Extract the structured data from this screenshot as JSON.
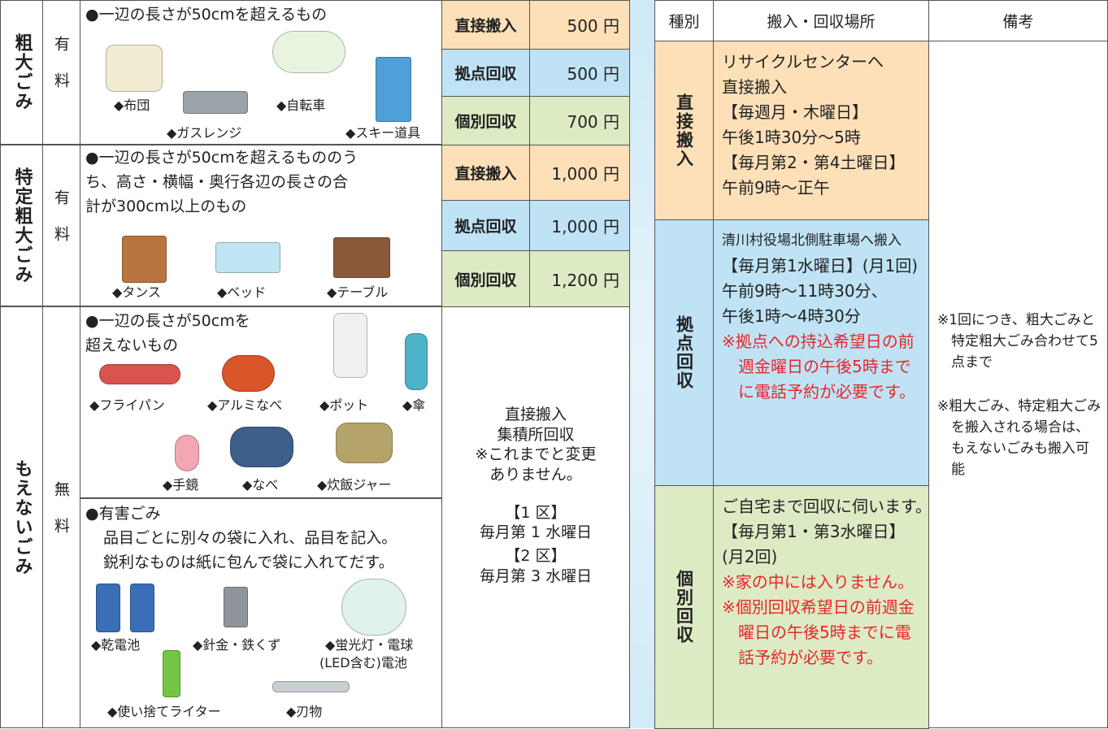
{
  "left_table": {
    "rows": [
      {
        "category": "粗大ごみ",
        "fee": "有料",
        "description": [
          "●一辺の長さが50cmを超えるもの"
        ],
        "items": [
          "◆布団",
          "◆自転車",
          "◆ガスレンジ",
          "◆スキー道具"
        ],
        "methods": [
          {
            "method": "直接搬入",
            "price": "500 円"
          },
          {
            "method": "拠点回収",
            "price": "500 円"
          },
          {
            "method": "個別回収",
            "price": "700 円"
          }
        ]
      },
      {
        "category": "特定粗大ごみ",
        "fee": "有料",
        "description": [
          "●一辺の長さが50cmを超えるもののう",
          "ち、高さ・横幅・奥行各辺の長さの合",
          "計が300cm以上のもの"
        ],
        "items": [
          "◆タンス",
          "◆ベッド",
          "◆テーブル"
        ],
        "methods": [
          {
            "method": "直接搬入",
            "price": "1,000 円"
          },
          {
            "method": "拠点回収",
            "price": "1,000 円"
          },
          {
            "method": "個別回収",
            "price": "1,200 円"
          }
        ]
      },
      {
        "category": "もえないごみ",
        "fee": "無料",
        "sections": [
          {
            "description": [
              "●一辺の長さが50cmを",
              "超えないもの"
            ],
            "items": [
              "◆フライパン",
              "◆アルミなべ",
              "◆ポット",
              "◆傘",
              "◆手鏡",
              "◆なべ",
              "◆炊飯ジャー"
            ]
          },
          {
            "description": [
              "●有害ごみ",
              "品目ごとに別々の袋に入れ、品目を記入。",
              "鋭利なものは紙に包んで袋に入れてだす。"
            ],
            "items": [
              "◆乾電池",
              "◆針金・鉄くず",
              "◆蛍光灯・電球",
              "(LED含む)電池",
              "◆使い捨てライター",
              "◆刃物"
            ]
          }
        ],
        "collection": [
          "直接搬入",
          "集積所回収",
          "※これまでと変更",
          "ありません。",
          "【1 区】",
          "毎月第 1 水曜日",
          "【2 区】",
          "毎月第 3 水曜日"
        ]
      }
    ]
  },
  "right_table": {
    "header": [
      "種別",
      "搬入・回収場所",
      "備考"
    ],
    "rows": [
      {
        "type": "直接搬入",
        "place": [
          "リサイクルセンターへ",
          "直接搬入",
          "【毎週月・木曜日】",
          "午後1時30分～5時",
          "【毎月第2・第4土曜日】",
          "午前9時～正午"
        ]
      },
      {
        "type": "拠点回収",
        "place": [
          "清川村役場北側駐車場へ搬入",
          "【毎月第1水曜日】(月1回)",
          "午前9時～11時30分、",
          "午後1時～4時30分",
          "※拠点への持込希望日の前週金曜日の午後5時までに電話予約が必要です。"
        ]
      },
      {
        "type": "個別回収",
        "place": [
          "ご自宅まで回収に伺います。",
          "【毎月第1・第3水曜日】",
          "(月2回)",
          "※家の中には入りません。",
          "※個別回収希望日の前週金曜日の午後5時までに電話予約が必要です。"
        ]
      }
    ],
    "remarks": [
      "※1回につき、粗大ごみと特定粗大ごみ合わせて5点まで",
      "※粗大ごみ、特定粗大ごみを搬入される場合は、もえないごみも搬入可能"
    ]
  }
}
